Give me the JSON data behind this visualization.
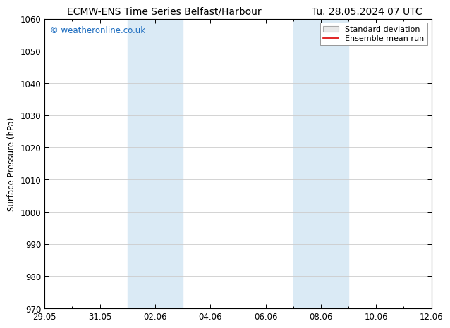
{
  "title_left": "ECMW-ENS Time Series Belfast/Harbour",
  "title_right": "Tu. 28.05.2024 07 UTC",
  "ylabel": "Surface Pressure (hPa)",
  "ylim": [
    970,
    1060
  ],
  "yticks": [
    970,
    980,
    990,
    1000,
    1010,
    1020,
    1030,
    1040,
    1050,
    1060
  ],
  "xtick_labels": [
    "29.05",
    "31.05",
    "02.06",
    "04.06",
    "06.06",
    "08.06",
    "10.06",
    "12.06"
  ],
  "xtick_positions": [
    0,
    2,
    4,
    6,
    8,
    10,
    12,
    14
  ],
  "shaded_bands": [
    {
      "x_start": 3,
      "x_end": 5
    },
    {
      "x_start": 9,
      "x_end": 11
    }
  ],
  "shaded_color": "#daeaf5",
  "watermark_text": "© weatheronline.co.uk",
  "watermark_color": "#1a6bbf",
  "legend_std_label": "Standard deviation",
  "legend_mean_label": "Ensemble mean run",
  "legend_std_facecolor": "#e8e8e8",
  "legend_std_edgecolor": "#aaaaaa",
  "legend_mean_color": "#dd0000",
  "bg_color": "#ffffff",
  "grid_color": "#cccccc",
  "title_fontsize": 10,
  "ylabel_fontsize": 8.5,
  "tick_fontsize": 8.5,
  "watermark_fontsize": 8.5,
  "legend_fontsize": 8
}
